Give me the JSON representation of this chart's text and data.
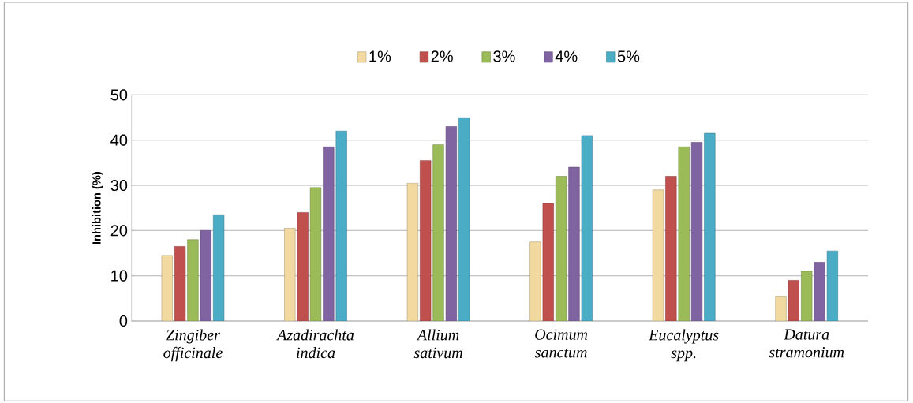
{
  "chart_data": {
    "type": "bar",
    "ylabel": "Inhibition  (%)",
    "categories": [
      "Zingiber officinale",
      "Azadirachta indica",
      "Allium sativum",
      "Ocimum sanctum",
      "Eucalyptus spp.",
      "Datura stramonium"
    ],
    "series": [
      {
        "name": "1%",
        "color": "#f2d9a0",
        "values": [
          14.5,
          20.5,
          30.5,
          17.5,
          29,
          5.5
        ]
      },
      {
        "name": "2%",
        "color": "#c0504d",
        "values": [
          16.5,
          24,
          35.5,
          26,
          32,
          9
        ]
      },
      {
        "name": "3%",
        "color": "#9bbb59",
        "values": [
          18,
          29.5,
          39,
          32,
          38.5,
          11
        ]
      },
      {
        "name": "4%",
        "color": "#8064a2",
        "values": [
          20,
          38.5,
          43,
          34,
          39.5,
          13
        ]
      },
      {
        "name": "5%",
        "color": "#4bacc6",
        "values": [
          23.5,
          42,
          45,
          41,
          41.5,
          15.5
        ]
      }
    ],
    "ylim": [
      0,
      50
    ],
    "yticks": [
      0,
      10,
      20,
      30,
      40,
      50
    ],
    "grid": "y",
    "legend": "top"
  }
}
